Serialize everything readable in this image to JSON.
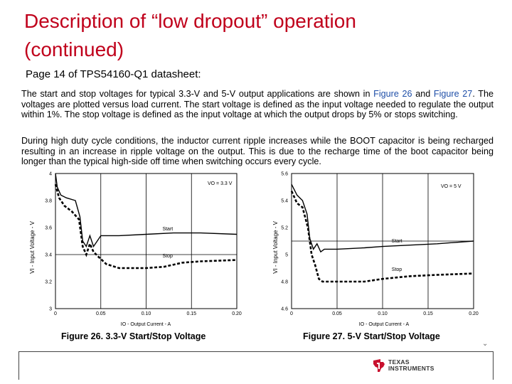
{
  "slide": {
    "title_line1": "Description of “low dropout” operation",
    "title_line2": "(continued)",
    "subtitle": "Page 14 of TPS54160-Q1 datasheet:"
  },
  "text": {
    "p1_a": "The start and stop voltages for typical 3.3-V and 5-V output applications are shown in ",
    "p1_link1": "Figure 26",
    "p1_and": " and ",
    "p1_link2": "Figure 27",
    "p1_b": ". The voltages are plotted versus load current. The start voltage is defined as the input voltage needed to regulate the output within 1%. The stop voltage is defined as the input voltage at which the output drops by 5% or stops switching.",
    "p2": "During high duty cycle conditions, the inductor current ripple increases while the BOOT capacitor is being recharged resulting in an increase in ripple voltage on the output. This is due to the recharge time of the boot capacitor being longer than the typical high-side off time when switching occurs every cycle."
  },
  "figures": [
    {
      "caption": "Figure 26. 3.3-V Start/Stop Voltage",
      "annotation": "VO = 3.3 V",
      "ylabel": "VI - Input Voltage - V",
      "xlabel": "IO - Output Current - A",
      "start_label": "Start",
      "stop_label": "Stop",
      "ylim": [
        3,
        4
      ],
      "xlim": [
        0,
        0.2
      ],
      "yticks": [
        "3",
        "3.2",
        "3.4",
        "3.6",
        "3.8",
        "4"
      ],
      "xticks": [
        "0",
        "0.05",
        "0.10",
        "0.15",
        "0.20"
      ],
      "start": [
        [
          0.0,
          4.0
        ],
        [
          0.002,
          3.9
        ],
        [
          0.006,
          3.84
        ],
        [
          0.012,
          3.82
        ],
        [
          0.022,
          3.8
        ],
        [
          0.027,
          3.68
        ],
        [
          0.03,
          3.5
        ],
        [
          0.034,
          3.46
        ],
        [
          0.038,
          3.54
        ],
        [
          0.042,
          3.46
        ],
        [
          0.046,
          3.5
        ],
        [
          0.05,
          3.54
        ],
        [
          0.07,
          3.54
        ],
        [
          0.1,
          3.55
        ],
        [
          0.13,
          3.56
        ],
        [
          0.16,
          3.56
        ],
        [
          0.2,
          3.55
        ]
      ],
      "stop": [
        [
          0.0,
          3.92
        ],
        [
          0.004,
          3.82
        ],
        [
          0.01,
          3.76
        ],
        [
          0.018,
          3.72
        ],
        [
          0.026,
          3.66
        ],
        [
          0.03,
          3.46
        ],
        [
          0.034,
          3.4
        ],
        [
          0.038,
          3.48
        ],
        [
          0.042,
          3.42
        ],
        [
          0.048,
          3.38
        ],
        [
          0.056,
          3.33
        ],
        [
          0.07,
          3.3
        ],
        [
          0.1,
          3.3
        ],
        [
          0.12,
          3.31
        ],
        [
          0.14,
          3.34
        ],
        [
          0.16,
          3.35
        ],
        [
          0.2,
          3.36
        ]
      ]
    },
    {
      "caption": "Figure 27. 5-V Start/Stop Voltage",
      "annotation": "VO = 5 V",
      "ylabel": "VI - Input Voltage - V",
      "xlabel": "IO - Output Current - A",
      "start_label": "Start",
      "stop_label": "Stop",
      "ylim": [
        4.6,
        5.6
      ],
      "xlim": [
        0,
        0.2
      ],
      "yticks": [
        "4.6",
        "4.8",
        "5",
        "5.2",
        "5.4",
        "5.6"
      ],
      "xticks": [
        "0",
        "0.05",
        "0.10",
        "0.15",
        "0.20"
      ],
      "start": [
        [
          0.0,
          5.52
        ],
        [
          0.006,
          5.44
        ],
        [
          0.012,
          5.4
        ],
        [
          0.017,
          5.3
        ],
        [
          0.02,
          5.12
        ],
        [
          0.024,
          5.04
        ],
        [
          0.028,
          5.08
        ],
        [
          0.032,
          5.02
        ],
        [
          0.036,
          5.04
        ],
        [
          0.05,
          5.04
        ],
        [
          0.08,
          5.05
        ],
        [
          0.1,
          5.06
        ],
        [
          0.13,
          5.07
        ],
        [
          0.16,
          5.08
        ],
        [
          0.2,
          5.1
        ]
      ],
      "stop": [
        [
          0.0,
          5.47
        ],
        [
          0.006,
          5.38
        ],
        [
          0.012,
          5.35
        ],
        [
          0.018,
          5.2
        ],
        [
          0.022,
          5.0
        ],
        [
          0.026,
          4.92
        ],
        [
          0.03,
          4.82
        ],
        [
          0.034,
          4.8
        ],
        [
          0.05,
          4.8
        ],
        [
          0.08,
          4.8
        ],
        [
          0.1,
          4.82
        ],
        [
          0.13,
          4.84
        ],
        [
          0.16,
          4.85
        ],
        [
          0.2,
          4.86
        ]
      ]
    }
  ],
  "footer": {
    "logo_line1": "TEXAS",
    "logo_line2": "INSTRUMENTS",
    "logo_color": "#c8102e"
  }
}
